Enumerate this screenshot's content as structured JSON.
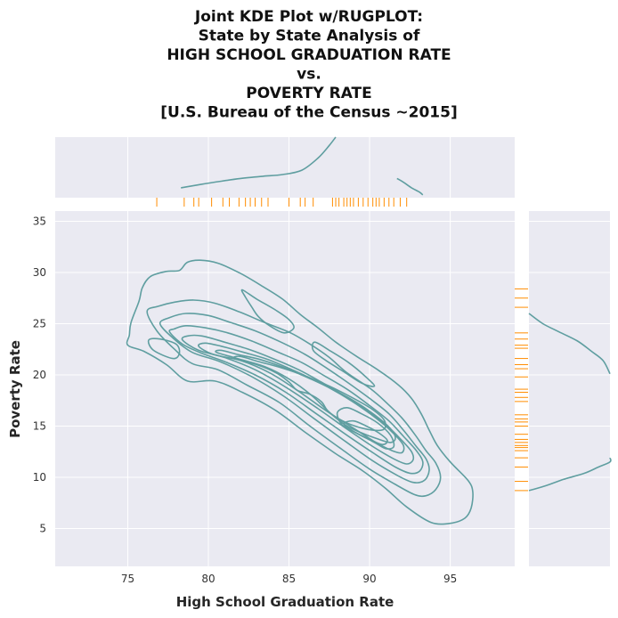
{
  "chart_data": {
    "type": "kde",
    "title_lines": [
      "Joint KDE Plot w/RUGPLOT:",
      "State by State Analysis of",
      "HIGH SCHOOL GRADUATION RATE",
      "vs.",
      "POVERTY RATE",
      "[U.S. Bureau of the Census ~2015]"
    ],
    "xlabel": "High School Graduation Rate",
    "ylabel": "Poverty Rate",
    "xlim": [
      70.5,
      99
    ],
    "ylim": [
      1.3,
      36
    ],
    "x_ticks": [
      75,
      80,
      85,
      90,
      95
    ],
    "y_ticks": [
      5,
      10,
      15,
      20,
      25,
      30,
      35
    ],
    "grid": true,
    "legend": "none",
    "contour_color": "#5f9ea0",
    "rug_color": "#ff8c00",
    "panel_color": "#eaeaf2",
    "rug_x": [
      76.8,
      78.5,
      79.1,
      79.4,
      80.2,
      80.9,
      81.3,
      81.9,
      82.3,
      82.6,
      82.9,
      83.3,
      83.7,
      85.0,
      85.7,
      86.0,
      86.5,
      87.7,
      87.9,
      88.1,
      88.4,
      88.6,
      88.8,
      89.0,
      89.3,
      89.6,
      89.9,
      90.2,
      90.4,
      90.6,
      90.9,
      91.2,
      91.5,
      91.9,
      92.3
    ],
    "rug_y": [
      8.7,
      9.6,
      11.0,
      11.9,
      12.6,
      12.9,
      13.1,
      13.4,
      13.7,
      14.2,
      15.0,
      15.4,
      15.7,
      16.1,
      17.4,
      17.8,
      18.3,
      18.6,
      19.8,
      20.6,
      21.0,
      21.6,
      22.6,
      22.9,
      23.5,
      24.1,
      26.6,
      27.5,
      28.4
    ],
    "contour_levels": [
      [
        [
          75.0,
          22.9
        ],
        [
          76.0,
          22.3
        ],
        [
          77.4,
          21.0
        ],
        [
          78.7,
          19.4
        ],
        [
          80.4,
          19.4
        ],
        [
          82.1,
          18.3
        ],
        [
          84.1,
          16.6
        ],
        [
          86.0,
          14.4
        ],
        [
          87.9,
          12.3
        ],
        [
          89.6,
          10.6
        ],
        [
          91.0,
          8.9
        ],
        [
          92.3,
          7.1
        ],
        [
          93.8,
          5.6
        ],
        [
          95.0,
          5.5
        ],
        [
          95.9,
          6.0
        ],
        [
          96.3,
          7.0
        ],
        [
          96.4,
          8.6
        ],
        [
          96.1,
          9.7
        ],
        [
          95.0,
          11.5
        ],
        [
          94.2,
          13.1
        ],
        [
          93.7,
          14.6
        ],
        [
          93.2,
          16.2
        ],
        [
          92.6,
          17.7
        ],
        [
          91.8,
          19.0
        ],
        [
          90.6,
          20.4
        ],
        [
          89.2,
          21.8
        ],
        [
          87.9,
          23.2
        ],
        [
          86.8,
          24.6
        ],
        [
          85.7,
          25.9
        ],
        [
          84.6,
          27.4
        ],
        [
          83.3,
          28.7
        ],
        [
          82.0,
          29.9
        ],
        [
          80.6,
          30.9
        ],
        [
          79.5,
          31.2
        ],
        [
          78.7,
          31.0
        ],
        [
          78.2,
          30.2
        ],
        [
          77.4,
          30.1
        ],
        [
          76.4,
          29.6
        ],
        [
          75.9,
          28.5
        ],
        [
          75.7,
          27.2
        ],
        [
          75.2,
          25.1
        ],
        [
          75.1,
          23.9
        ],
        [
          75.0,
          22.9
        ]
      ],
      [
        [
          76.2,
          26.2
        ],
        [
          76.8,
          24.3
        ],
        [
          77.9,
          22.5
        ],
        [
          79.0,
          21.1
        ],
        [
          80.6,
          20.5
        ],
        [
          82.4,
          19.0
        ],
        [
          84.4,
          17.3
        ],
        [
          86.3,
          15.0
        ],
        [
          88.3,
          12.7
        ],
        [
          90.0,
          10.8
        ],
        [
          91.6,
          9.3
        ],
        [
          92.8,
          8.3
        ],
        [
          93.5,
          8.2
        ],
        [
          94.1,
          8.8
        ],
        [
          94.4,
          10.0
        ],
        [
          94.1,
          11.4
        ],
        [
          93.5,
          12.6
        ],
        [
          92.8,
          14.2
        ],
        [
          92.0,
          15.8
        ],
        [
          91.1,
          17.2
        ],
        [
          90.1,
          18.6
        ],
        [
          88.6,
          20.2
        ],
        [
          87.5,
          21.7
        ],
        [
          86.4,
          22.9
        ],
        [
          85.1,
          24.1
        ],
        [
          83.5,
          25.1
        ],
        [
          82.0,
          26.1
        ],
        [
          80.4,
          27.0
        ],
        [
          79.1,
          27.3
        ],
        [
          77.9,
          27.1
        ],
        [
          76.9,
          26.7
        ],
        [
          76.2,
          26.2
        ]
      ],
      [
        [
          77.0,
          25.0
        ],
        [
          77.8,
          23.6
        ],
        [
          79.0,
          22.2
        ],
        [
          80.7,
          21.3
        ],
        [
          82.6,
          19.9
        ],
        [
          84.6,
          18.0
        ],
        [
          86.5,
          15.8
        ],
        [
          88.5,
          13.5
        ],
        [
          90.2,
          11.6
        ],
        [
          91.7,
          10.2
        ],
        [
          92.7,
          9.5
        ],
        [
          93.4,
          9.7
        ],
        [
          93.7,
          10.7
        ],
        [
          93.5,
          11.8
        ],
        [
          92.9,
          13.0
        ],
        [
          92.1,
          14.6
        ],
        [
          91.2,
          16.2
        ],
        [
          90.0,
          17.7
        ],
        [
          88.6,
          19.3
        ],
        [
          87.3,
          20.7
        ],
        [
          86.0,
          22.0
        ],
        [
          84.5,
          23.2
        ],
        [
          82.9,
          24.3
        ],
        [
          81.4,
          25.1
        ],
        [
          80.0,
          25.8
        ],
        [
          78.6,
          26.0
        ],
        [
          77.6,
          25.6
        ],
        [
          77.0,
          25.0
        ]
      ],
      [
        [
          77.6,
          24.2
        ],
        [
          78.4,
          23.0
        ],
        [
          79.6,
          22.1
        ],
        [
          81.0,
          21.3
        ],
        [
          82.9,
          20.0
        ],
        [
          84.8,
          18.3
        ],
        [
          86.7,
          16.2
        ],
        [
          88.6,
          14.1
        ],
        [
          90.3,
          12.3
        ],
        [
          91.6,
          11.0
        ],
        [
          92.5,
          10.4
        ],
        [
          93.1,
          10.6
        ],
        [
          93.3,
          11.5
        ],
        [
          92.9,
          12.6
        ],
        [
          92.1,
          14.0
        ],
        [
          91.2,
          15.5
        ],
        [
          90.0,
          17.0
        ],
        [
          88.6,
          18.6
        ],
        [
          87.2,
          19.9
        ],
        [
          85.8,
          21.2
        ],
        [
          84.2,
          22.3
        ],
        [
          82.7,
          23.3
        ],
        [
          81.2,
          24.1
        ],
        [
          79.8,
          24.6
        ],
        [
          78.6,
          24.8
        ],
        [
          77.9,
          24.5
        ],
        [
          77.6,
          24.2
        ]
      ],
      [
        [
          78.4,
          23.4
        ],
        [
          79.4,
          22.4
        ],
        [
          81.0,
          21.7
        ],
        [
          82.9,
          20.5
        ],
        [
          84.9,
          18.7
        ],
        [
          86.8,
          16.7
        ],
        [
          88.6,
          14.7
        ],
        [
          90.2,
          13.0
        ],
        [
          91.5,
          11.8
        ],
        [
          92.3,
          11.3
        ],
        [
          92.7,
          11.7
        ],
        [
          92.6,
          12.5
        ],
        [
          92.0,
          13.6
        ],
        [
          91.1,
          15.0
        ],
        [
          89.9,
          16.5
        ],
        [
          88.4,
          18.0
        ],
        [
          87.0,
          19.3
        ],
        [
          85.6,
          20.5
        ],
        [
          84.0,
          21.6
        ],
        [
          82.5,
          22.5
        ],
        [
          81.0,
          23.2
        ],
        [
          79.6,
          23.8
        ],
        [
          78.7,
          23.8
        ],
        [
          78.4,
          23.4
        ]
      ],
      [
        [
          79.4,
          22.8
        ],
        [
          80.3,
          22.0
        ],
        [
          82.0,
          21.4
        ],
        [
          83.8,
          20.2
        ],
        [
          85.6,
          18.4
        ],
        [
          87.3,
          16.5
        ],
        [
          89.0,
          14.8
        ],
        [
          90.4,
          13.4
        ],
        [
          91.4,
          12.6
        ],
        [
          92.0,
          12.4
        ],
        [
          92.1,
          13.1
        ],
        [
          91.6,
          14.1
        ],
        [
          90.7,
          15.4
        ],
        [
          89.5,
          16.8
        ],
        [
          88.1,
          18.2
        ],
        [
          86.7,
          19.4
        ],
        [
          85.2,
          20.5
        ],
        [
          83.7,
          21.5
        ],
        [
          82.2,
          22.2
        ],
        [
          80.8,
          22.8
        ],
        [
          79.8,
          23.1
        ],
        [
          79.4,
          22.8
        ]
      ],
      [
        [
          80.5,
          22.2
        ],
        [
          81.8,
          21.6
        ],
        [
          83.5,
          20.8
        ],
        [
          85.0,
          19.6
        ],
        [
          86.4,
          18.0
        ],
        [
          87.6,
          16.2
        ],
        [
          88.5,
          15.1
        ],
        [
          89.4,
          14.4
        ],
        [
          90.4,
          13.8
        ],
        [
          91.3,
          13.4
        ],
        [
          91.6,
          13.9
        ],
        [
          91.2,
          14.9
        ],
        [
          90.3,
          16.1
        ],
        [
          89.1,
          17.4
        ],
        [
          87.7,
          18.6
        ],
        [
          86.2,
          19.7
        ],
        [
          84.7,
          20.7
        ],
        [
          83.2,
          21.5
        ],
        [
          81.8,
          22.0
        ],
        [
          80.8,
          22.4
        ],
        [
          80.5,
          22.2
        ]
      ],
      [
        [
          81.6,
          21.6
        ],
        [
          83.0,
          21.0
        ],
        [
          84.2,
          20.2
        ],
        [
          85.0,
          19.3
        ],
        [
          85.5,
          18.5
        ],
        [
          86.3,
          18.1
        ],
        [
          87.0,
          17.4
        ],
        [
          87.4,
          16.5
        ],
        [
          88.1,
          15.7
        ],
        [
          89.1,
          15.0
        ],
        [
          90.2,
          14.6
        ],
        [
          90.9,
          14.7
        ],
        [
          90.9,
          15.6
        ],
        [
          90.1,
          16.7
        ],
        [
          88.9,
          17.8
        ],
        [
          87.5,
          18.9
        ],
        [
          86.0,
          19.9
        ],
        [
          84.5,
          20.7
        ],
        [
          83.1,
          21.3
        ],
        [
          82.0,
          21.8
        ],
        [
          81.6,
          21.6
        ]
      ],
      [
        [
          82.1,
          28.3
        ],
        [
          83.0,
          27.4
        ],
        [
          84.2,
          26.3
        ],
        [
          85.0,
          25.4
        ],
        [
          85.3,
          24.6
        ],
        [
          84.7,
          24.1
        ],
        [
          83.8,
          24.8
        ],
        [
          83.1,
          25.7
        ],
        [
          82.7,
          26.6
        ],
        [
          82.3,
          27.6
        ],
        [
          82.1,
          28.3
        ]
      ],
      [
        [
          78.0,
          23.0
        ],
        [
          78.2,
          22.1
        ],
        [
          77.8,
          21.6
        ],
        [
          76.6,
          22.4
        ],
        [
          76.3,
          23.4
        ],
        [
          77.0,
          23.5
        ],
        [
          78.0,
          23.0
        ]
      ],
      [
        [
          86.6,
          23.2
        ],
        [
          87.5,
          22.4
        ],
        [
          88.7,
          21.2
        ],
        [
          89.7,
          19.9
        ],
        [
          90.3,
          18.9
        ],
        [
          89.5,
          19.2
        ],
        [
          88.4,
          20.3
        ],
        [
          87.2,
          21.5
        ],
        [
          86.5,
          22.4
        ],
        [
          86.6,
          23.2
        ]
      ],
      [
        [
          88.4,
          15.2
        ],
        [
          89.1,
          14.4
        ],
        [
          90.0,
          13.7
        ],
        [
          90.8,
          13.2
        ],
        [
          91.1,
          13.6
        ],
        [
          90.6,
          14.3
        ],
        [
          89.8,
          15.0
        ],
        [
          89.0,
          15.5
        ],
        [
          88.4,
          15.2
        ]
      ],
      [
        [
          88.0,
          16.3
        ],
        [
          88.3,
          15.1
        ],
        [
          89.2,
          14.3
        ],
        [
          90.3,
          13.4
        ],
        [
          91.0,
          12.8
        ],
        [
          91.5,
          13.0
        ],
        [
          91.3,
          14.1
        ],
        [
          90.5,
          15.3
        ],
        [
          89.5,
          16.2
        ],
        [
          88.6,
          16.8
        ],
        [
          88.0,
          16.3
        ]
      ]
    ],
    "marginal_x_kde": [
      [
        78.3,
        0.018
      ],
      [
        79.5,
        0.024
      ],
      [
        80.8,
        0.03
      ],
      [
        82.0,
        0.035
      ],
      [
        83.4,
        0.039
      ],
      [
        84.6,
        0.042
      ],
      [
        85.8,
        0.05
      ],
      [
        86.8,
        0.072
      ],
      [
        87.5,
        0.095
      ],
      [
        87.9,
        0.112
      ]
    ],
    "marginal_x_kde_tail": [
      [
        91.7,
        0.035
      ],
      [
        92.1,
        0.028
      ],
      [
        92.6,
        0.018
      ],
      [
        93.1,
        0.01
      ],
      [
        93.3,
        0.005
      ]
    ],
    "marginal_y_upper": [
      [
        26.0,
        0.0
      ],
      [
        25.0,
        0.012
      ],
      [
        24.2,
        0.026
      ],
      [
        23.3,
        0.042
      ],
      [
        22.3,
        0.054
      ],
      [
        21.4,
        0.064
      ],
      [
        20.1,
        0.07
      ]
    ],
    "marginal_y_lower": [
      [
        8.7,
        0.0
      ],
      [
        9.2,
        0.015
      ],
      [
        9.8,
        0.03
      ],
      [
        10.4,
        0.048
      ],
      [
        11.0,
        0.06
      ],
      [
        11.5,
        0.07
      ],
      [
        11.9,
        0.072
      ]
    ]
  }
}
